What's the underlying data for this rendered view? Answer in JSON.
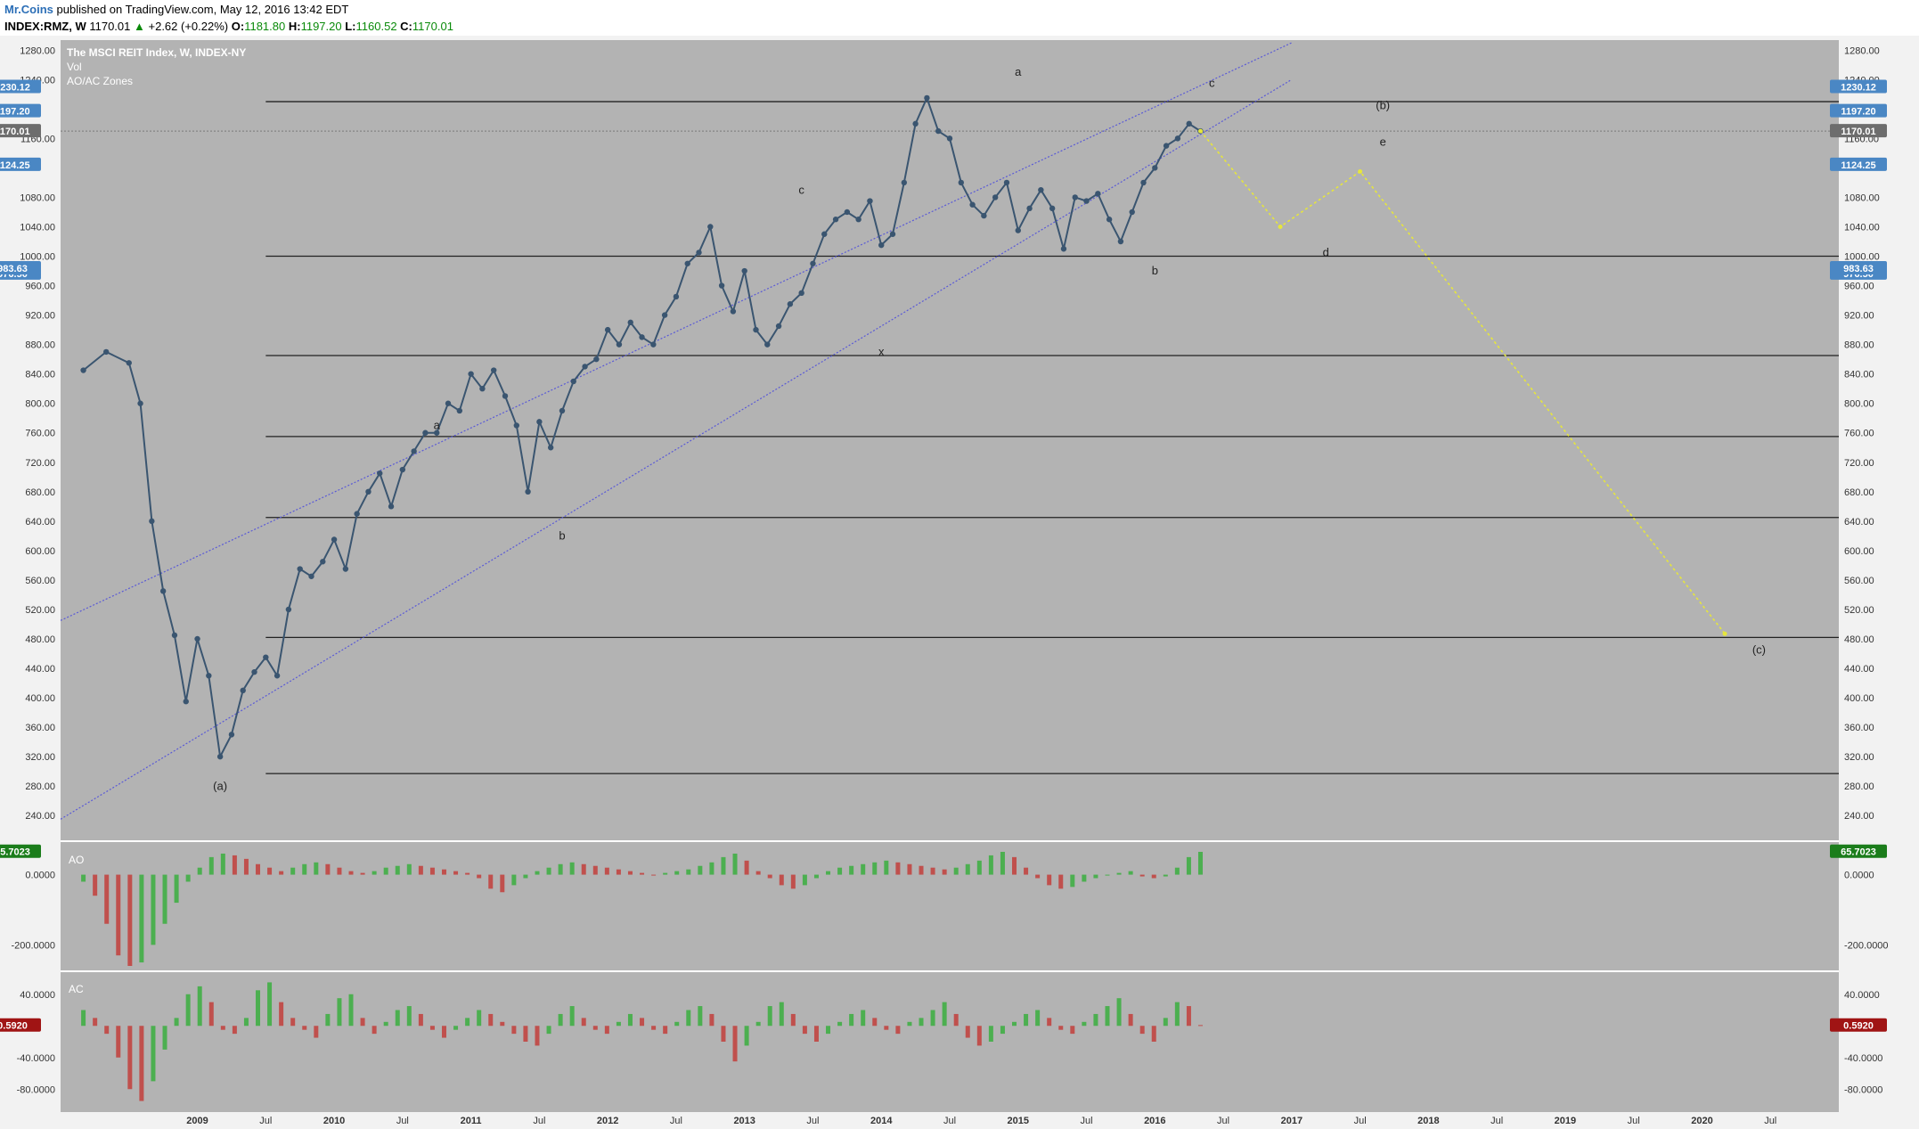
{
  "header": {
    "author": "Mr.Coins",
    "published_text": " published on TradingView.com, May 12, 2016 13:42 EDT",
    "symbol": "INDEX:RMZ, W",
    "last": "1170.01",
    "change_arrow": "▲",
    "change": "+2.62 (+0.22%)",
    "open_label": "O:",
    "open": "1181.80",
    "high_label": "H:",
    "high": "1197.20",
    "low_label": "L:",
    "low": "1160.52",
    "close_label": "C:",
    "close": "1170.01"
  },
  "legend": {
    "title": "The MSCI REIT Index, W, INDEX-NY",
    "vol": "Vol",
    "zones": "AO/AC Zones",
    "ao": "AO",
    "ac": "AC"
  },
  "colors": {
    "background": "#b3b3b3",
    "price_line": "#3a5570",
    "channel": "#5a5ad6",
    "projection": "#e6e63c",
    "ao_up": "#4caf50",
    "ao_down": "#c0504d",
    "tag_blue": "#4a87c4",
    "tag_gray": "#6d6d6d",
    "tag_green": "#1b7d1b",
    "tag_red": "#a01414"
  },
  "chart_data": {
    "type": "line",
    "title": "The MSCI REIT Index, W, INDEX-NY",
    "y_axis": {
      "range": [
        210,
        1290
      ],
      "ticks": [
        "240.00",
        "280.00",
        "320.00",
        "360.00",
        "400.00",
        "440.00",
        "480.00",
        "520.00",
        "560.00",
        "600.00",
        "640.00",
        "680.00",
        "720.00",
        "760.00",
        "800.00",
        "840.00",
        "880.00",
        "920.00",
        "960.00",
        "1000.00",
        "1040.00",
        "1080.00",
        "1160.00",
        "1240.00",
        "1280.00"
      ]
    },
    "x_axis": {
      "ticks": [
        "2009",
        "Jul",
        "2010",
        "Jul",
        "2011",
        "Jul",
        "2012",
        "Jul",
        "2013",
        "Jul",
        "2014",
        "Jul",
        "2015",
        "Jul",
        "2016",
        "Jul",
        "2017",
        "Jul",
        "2018",
        "Jul",
        "2019",
        "Jul",
        "2020",
        "Jul"
      ]
    },
    "price_tags": [
      {
        "value": "1230.12",
        "type": "blue"
      },
      {
        "value": "1197.20",
        "type": "blue"
      },
      {
        "value": "1170.01",
        "type": "gray"
      },
      {
        "value": "1124.25",
        "type": "blue"
      },
      {
        "value": "976.50",
        "type": "blue"
      },
      {
        "value": "983.63",
        "type": "blue"
      }
    ],
    "series": [
      {
        "x": [
          "2008-03",
          "2008-05",
          "2008-07",
          "2008-08",
          "2008-09",
          "2008-10",
          "2008-11",
          "2008-12",
          "2009-01",
          "2009-02",
          "2009-03",
          "2009-04",
          "2009-05",
          "2009-06",
          "2009-07",
          "2009-08",
          "2009-09",
          "2009-10",
          "2009-11",
          "2009-12",
          "2010-01",
          "2010-02",
          "2010-03",
          "2010-04",
          "2010-05",
          "2010-06",
          "2010-07",
          "2010-08",
          "2010-09",
          "2010-10",
          "2010-11",
          "2010-12",
          "2011-01",
          "2011-02",
          "2011-03",
          "2011-04",
          "2011-05",
          "2011-06",
          "2011-07",
          "2011-08",
          "2011-09",
          "2011-10",
          "2011-11",
          "2011-12",
          "2012-01",
          "2012-02",
          "2012-03",
          "2012-04",
          "2012-05",
          "2012-06",
          "2012-07",
          "2012-08",
          "2012-09",
          "2012-10",
          "2012-11",
          "2012-12",
          "2013-01",
          "2013-02",
          "2013-03",
          "2013-04",
          "2013-05",
          "2013-06",
          "2013-07",
          "2013-08",
          "2013-09",
          "2013-10",
          "2013-11",
          "2013-12",
          "2014-01",
          "2014-02",
          "2014-03",
          "2014-04",
          "2014-05",
          "2014-06",
          "2014-07",
          "2014-08",
          "2014-09",
          "2014-10",
          "2014-11",
          "2014-12",
          "2015-01",
          "2015-02",
          "2015-03",
          "2015-04",
          "2015-05",
          "2015-06",
          "2015-07",
          "2015-08",
          "2015-09",
          "2015-10",
          "2015-11",
          "2015-12",
          "2016-01",
          "2016-02",
          "2016-03",
          "2016-04",
          "2016-05"
        ],
        "values": [
          845,
          870,
          855,
          800,
          640,
          545,
          485,
          395,
          480,
          430,
          320,
          350,
          410,
          435,
          455,
          430,
          520,
          575,
          565,
          585,
          615,
          575,
          650,
          680,
          705,
          660,
          710,
          735,
          760,
          760,
          800,
          790,
          840,
          820,
          845,
          810,
          770,
          680,
          775,
          740,
          790,
          830,
          850,
          860,
          900,
          880,
          910,
          890,
          880,
          920,
          945,
          990,
          1005,
          1040,
          960,
          925,
          980,
          900,
          880,
          905,
          935,
          950,
          990,
          1030,
          1050,
          1060,
          1050,
          1075,
          1015,
          1030,
          1100,
          1180,
          1215,
          1170,
          1160,
          1100,
          1070,
          1055,
          1080,
          1100,
          1035,
          1065,
          1090,
          1065,
          1010,
          1080,
          1075,
          1085,
          1050,
          1020,
          1060,
          1100,
          1120,
          1150,
          1160,
          1180,
          1170
        ]
      }
    ],
    "channel": [
      {
        "from": [
          "2008-01",
          505
        ],
        "to": [
          "2017-01",
          1290
        ]
      },
      {
        "from": [
          "2008-01",
          235
        ],
        "to": [
          "2017-01",
          1240
        ]
      }
    ],
    "horizontal_levels": [
      1210,
      1000,
      865,
      755,
      645,
      482,
      297
    ],
    "projection": [
      [
        "2016-05",
        1170
      ],
      [
        "2016-12",
        1040
      ],
      [
        "2017-07",
        1115
      ],
      [
        "2020-03",
        487
      ]
    ],
    "wave_labels": [
      {
        "text": "(a)",
        "x": "2009-03",
        "y": 275
      },
      {
        "text": "a",
        "x": "2010-10",
        "y": 765
      },
      {
        "text": "b",
        "x": "2011-09",
        "y": 615
      },
      {
        "text": "c",
        "x": "2013-06",
        "y": 1085
      },
      {
        "text": "x",
        "x": "2014-01",
        "y": 865
      },
      {
        "text": "a",
        "x": "2015-01",
        "y": 1245
      },
      {
        "text": "b",
        "x": "2016-01",
        "y": 975
      },
      {
        "text": "c",
        "x": "2016-06",
        "y": 1230
      },
      {
        "text": "(b)",
        "x": "2017-09",
        "y": 1200
      },
      {
        "text": "d",
        "x": "2017-04",
        "y": 1000
      },
      {
        "text": "e",
        "x": "2017-09",
        "y": 1150
      },
      {
        "text": "(c)",
        "x": "2020-06",
        "y": 460
      }
    ],
    "ao": {
      "last": "65.7023",
      "ticks": [
        "0.0000",
        "-200.0000"
      ],
      "range": [
        -260,
        70
      ],
      "values": [
        -20,
        -60,
        -140,
        -230,
        -260,
        -250,
        -200,
        -140,
        -80,
        -20,
        20,
        50,
        60,
        55,
        45,
        30,
        20,
        10,
        20,
        30,
        35,
        30,
        20,
        10,
        5,
        10,
        20,
        25,
        30,
        25,
        20,
        15,
        10,
        5,
        -10,
        -40,
        -50,
        -30,
        -10,
        10,
        20,
        30,
        35,
        30,
        25,
        20,
        15,
        10,
        5,
        0,
        5,
        10,
        15,
        25,
        35,
        50,
        60,
        40,
        10,
        -10,
        -30,
        -40,
        -30,
        -10,
        10,
        20,
        25,
        30,
        35,
        40,
        35,
        30,
        25,
        20,
        15,
        20,
        30,
        40,
        55,
        65,
        50,
        20,
        -10,
        -30,
        -40,
        -35,
        -20,
        -10,
        0,
        5,
        10,
        -5,
        -10,
        -5,
        20,
        50,
        65
      ]
    },
    "ac": {
      "last": "0.5920",
      "ticks": [
        "40.0000",
        "-40.0000",
        "-80.0000"
      ],
      "range": [
        -100,
        60
      ],
      "values": [
        20,
        10,
        -10,
        -40,
        -80,
        -95,
        -70,
        -30,
        10,
        40,
        50,
        30,
        -5,
        -10,
        10,
        45,
        55,
        30,
        10,
        -5,
        -15,
        15,
        35,
        40,
        10,
        -10,
        5,
        20,
        25,
        15,
        -5,
        -15,
        -5,
        10,
        20,
        15,
        5,
        -10,
        -20,
        -25,
        -10,
        15,
        25,
        10,
        -5,
        -10,
        5,
        15,
        10,
        -5,
        -10,
        5,
        20,
        25,
        15,
        -20,
        -45,
        -25,
        5,
        25,
        30,
        15,
        -10,
        -20,
        -10,
        5,
        15,
        20,
        10,
        -5,
        -10,
        5,
        10,
        20,
        30,
        15,
        -15,
        -25,
        -20,
        -10,
        5,
        15,
        20,
        10,
        -5,
        -10,
        5,
        15,
        25,
        35,
        15,
        -10,
        -20,
        10,
        30,
        25,
        1
      ]
    }
  }
}
